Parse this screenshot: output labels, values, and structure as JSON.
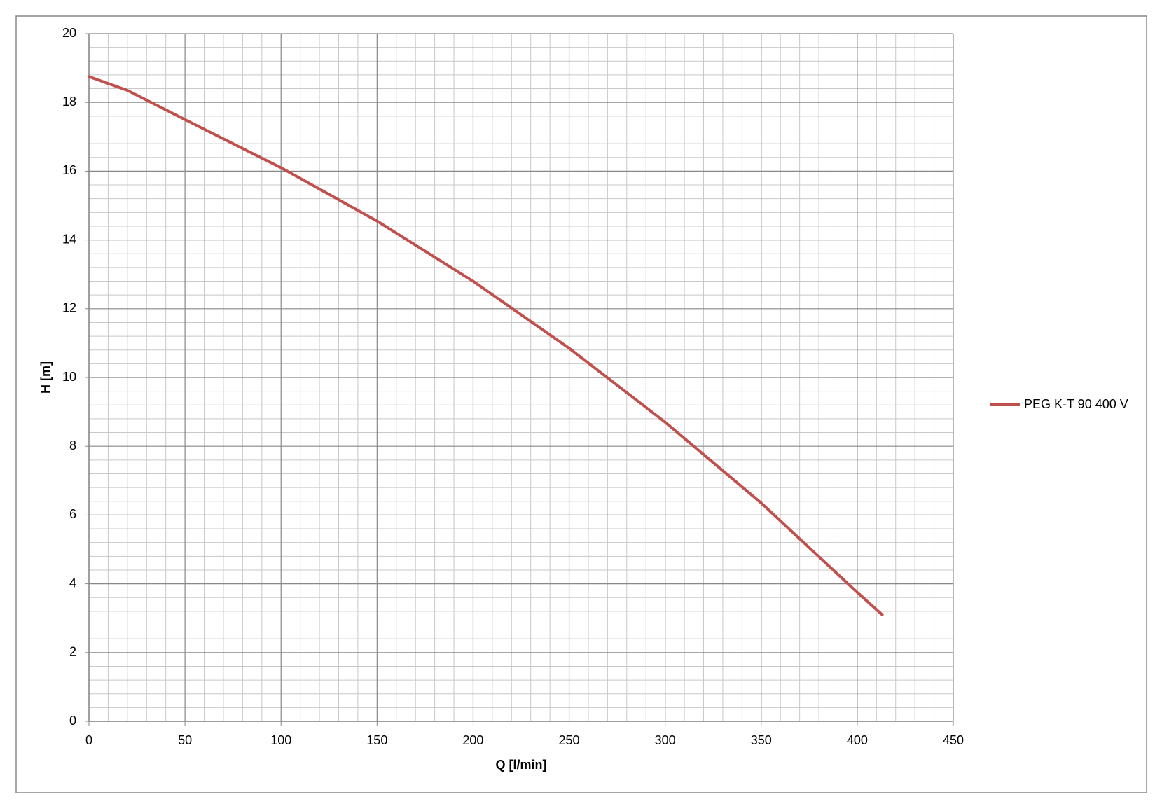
{
  "chart_data": {
    "type": "line",
    "xlabel": "Q [l/min]",
    "ylabel": "H [m]",
    "x": [
      0,
      20,
      50,
      100,
      150,
      200,
      250,
      300,
      350,
      400,
      413
    ],
    "series": [
      {
        "name": "PEG K-T 90 400 V",
        "color": "#c0504d",
        "values": [
          18.75,
          18.35,
          17.5,
          16.1,
          14.55,
          12.8,
          10.85,
          8.7,
          6.35,
          3.75,
          3.1
        ]
      }
    ],
    "xlim": [
      0,
      450
    ],
    "xticks": [
      0,
      50,
      100,
      150,
      200,
      250,
      300,
      350,
      400,
      450
    ],
    "ylim": [
      0,
      20
    ],
    "yticks": [
      0,
      2,
      4,
      6,
      8,
      10,
      12,
      14,
      16,
      18,
      20
    ],
    "grid": true,
    "legend": "right"
  }
}
